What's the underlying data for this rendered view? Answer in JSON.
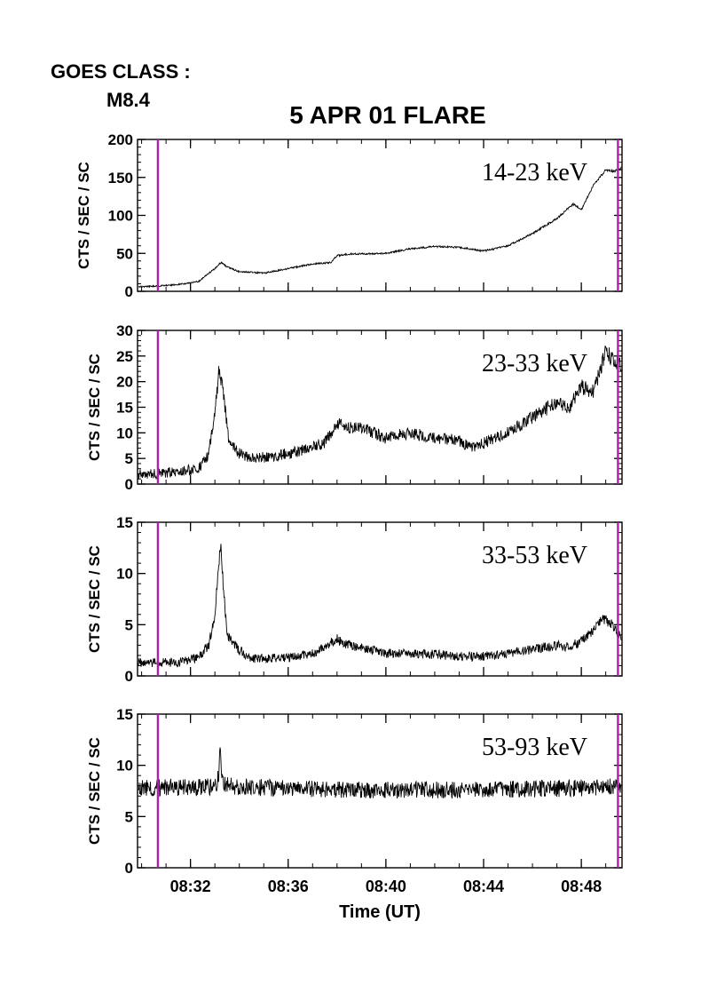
{
  "header": {
    "goes_label": "GOES CLASS :",
    "goes_class": "M8.4",
    "title": "5 APR 01 FLARE"
  },
  "colors": {
    "trace": "#000000",
    "marker": "#b020b0"
  },
  "chart_data": {
    "type": "line",
    "title": "5 APR 01 FLARE",
    "xlabel": "Time (UT)",
    "x_ticks": [
      "08:32",
      "08:36",
      "08:40",
      "08:44",
      "08:48"
    ],
    "x_range": [
      "08:29:50",
      "08:49:40"
    ],
    "vertical_markers": [
      "08:30:40",
      "08:49:30"
    ],
    "marker_color": "#b020b0",
    "panels": [
      {
        "band": "14-23 keV",
        "ylabel": "CTS / SEC / SC",
        "ylim": [
          0,
          200
        ],
        "yticks": [
          0,
          50,
          100,
          150,
          200
        ],
        "noise": 0.9,
        "series": [
          [
            "08:29:50",
            6
          ],
          [
            "08:30:40",
            7
          ],
          [
            "08:31:30",
            9
          ],
          [
            "08:32:20",
            13
          ],
          [
            "08:33:00",
            30
          ],
          [
            "08:33:15",
            38
          ],
          [
            "08:33:30",
            32
          ],
          [
            "08:34:00",
            26
          ],
          [
            "08:35:00",
            24
          ],
          [
            "08:36:00",
            30
          ],
          [
            "08:37:00",
            36
          ],
          [
            "08:37:45",
            38
          ],
          [
            "08:38:00",
            47
          ],
          [
            "08:38:30",
            49
          ],
          [
            "08:40:00",
            50
          ],
          [
            "08:41:00",
            56
          ],
          [
            "08:42:00",
            59
          ],
          [
            "08:43:00",
            58
          ],
          [
            "08:44:00",
            53
          ],
          [
            "08:45:00",
            60
          ],
          [
            "08:46:00",
            76
          ],
          [
            "08:47:00",
            96
          ],
          [
            "08:47:40",
            115
          ],
          [
            "08:48:00",
            107
          ],
          [
            "08:48:30",
            140
          ],
          [
            "08:49:00",
            160
          ],
          [
            "08:49:20",
            158
          ],
          [
            "08:49:40",
            163
          ]
        ]
      },
      {
        "band": "23-33 keV",
        "ylabel": "CTS / SEC / SC",
        "ylim": [
          0,
          30
        ],
        "yticks": [
          0,
          5,
          10,
          15,
          20,
          25,
          30
        ],
        "noise": 0.9,
        "series": [
          [
            "08:29:50",
            2
          ],
          [
            "08:30:40",
            2
          ],
          [
            "08:31:30",
            2.5
          ],
          [
            "08:32:20",
            3
          ],
          [
            "08:32:45",
            6
          ],
          [
            "08:33:00",
            14
          ],
          [
            "08:33:10",
            22
          ],
          [
            "08:33:20",
            18
          ],
          [
            "08:33:35",
            8
          ],
          [
            "08:34:00",
            6
          ],
          [
            "08:34:30",
            5
          ],
          [
            "08:35:30",
            5.5
          ],
          [
            "08:36:30",
            6.5
          ],
          [
            "08:37:30",
            8
          ],
          [
            "08:38:00",
            12
          ],
          [
            "08:38:30",
            11
          ],
          [
            "08:39:00",
            11
          ],
          [
            "08:40:00",
            9
          ],
          [
            "08:41:00",
            10
          ],
          [
            "08:42:00",
            9
          ],
          [
            "08:43:00",
            8.5
          ],
          [
            "08:43:30",
            7
          ],
          [
            "08:44:00",
            8
          ],
          [
            "08:45:00",
            10
          ],
          [
            "08:46:00",
            13
          ],
          [
            "08:47:00",
            16
          ],
          [
            "08:47:30",
            15
          ],
          [
            "08:48:00",
            19
          ],
          [
            "08:48:30",
            18
          ],
          [
            "08:49:00",
            26
          ],
          [
            "08:49:20",
            24
          ],
          [
            "08:49:40",
            23
          ]
        ]
      },
      {
        "band": "33-53 keV",
        "ylabel": "CTS / SEC / SC",
        "ylim": [
          0,
          15
        ],
        "yticks": [
          0,
          5,
          10,
          15
        ],
        "noise": 0.4,
        "series": [
          [
            "08:29:50",
            1.3
          ],
          [
            "08:30:40",
            1.3
          ],
          [
            "08:31:30",
            1.3
          ],
          [
            "08:32:20",
            1.8
          ],
          [
            "08:32:45",
            3
          ],
          [
            "08:33:00",
            6
          ],
          [
            "08:33:10",
            11
          ],
          [
            "08:33:15",
            13
          ],
          [
            "08:33:20",
            9
          ],
          [
            "08:33:30",
            4
          ],
          [
            "08:34:00",
            2.5
          ],
          [
            "08:34:30",
            1.7
          ],
          [
            "08:36:00",
            1.8
          ],
          [
            "08:37:00",
            2.2
          ],
          [
            "08:37:30",
            2.8
          ],
          [
            "08:38:00",
            3.6
          ],
          [
            "08:38:30",
            3
          ],
          [
            "08:39:30",
            2.5
          ],
          [
            "08:40:00",
            2.2
          ],
          [
            "08:42:00",
            2.1
          ],
          [
            "08:43:00",
            1.9
          ],
          [
            "08:44:00",
            1.9
          ],
          [
            "08:45:00",
            2.2
          ],
          [
            "08:46:00",
            2.6
          ],
          [
            "08:47:00",
            3
          ],
          [
            "08:47:30",
            2.8
          ],
          [
            "08:48:00",
            3.4
          ],
          [
            "08:48:30",
            4.5
          ],
          [
            "08:48:55",
            5.6
          ],
          [
            "08:49:20",
            4.8
          ],
          [
            "08:49:40",
            3.6
          ]
        ]
      },
      {
        "band": "53-93 keV",
        "ylabel": "CTS / SEC / SC",
        "ylim": [
          0,
          15
        ],
        "yticks": [
          0,
          5,
          10,
          15
        ],
        "noise": 0.55,
        "series": [
          [
            "08:29:50",
            7.8
          ],
          [
            "08:33:00",
            7.9
          ],
          [
            "08:33:10",
            9
          ],
          [
            "08:33:13",
            12
          ],
          [
            "08:33:16",
            9
          ],
          [
            "08:33:25",
            8
          ],
          [
            "08:36:00",
            7.7
          ],
          [
            "08:40:00",
            7.6
          ],
          [
            "08:44:00",
            7.6
          ],
          [
            "08:48:00",
            7.8
          ],
          [
            "08:49:40",
            8
          ]
        ]
      }
    ]
  }
}
